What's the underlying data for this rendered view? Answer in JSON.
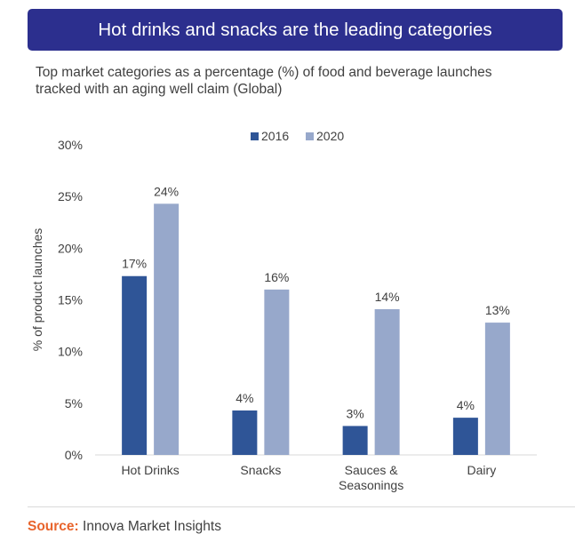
{
  "header": {
    "title": "Hot drinks and snacks are the leading categories",
    "subtitle_line1": "Top market categories as a percentage (%) of food and beverage launches",
    "subtitle_line2": "tracked with an aging well claim (Global)"
  },
  "footer": {
    "source_label": "Source:",
    "source_text": " Innova Market Insights"
  },
  "colors": {
    "banner": "#2c2f8e",
    "series_2016": "#2f5597",
    "series_2020": "#97a8cb",
    "source_label": "#e8642c"
  },
  "chart_data": {
    "type": "bar",
    "categories": [
      "Hot Drinks",
      "Snacks",
      "Sauces & Seasonings",
      "Dairy"
    ],
    "category_label_lines": [
      [
        "Hot Drinks"
      ],
      [
        "Snacks"
      ],
      [
        "Sauces &",
        "Seasonings"
      ],
      [
        "Dairy"
      ]
    ],
    "series": [
      {
        "name": "2016",
        "values": [
          17.3,
          4.3,
          2.8,
          3.6
        ],
        "labels": [
          "17%",
          "4%",
          "3%",
          "4%"
        ],
        "color": "#2f5597"
      },
      {
        "name": "2020",
        "values": [
          24.3,
          16.0,
          14.1,
          12.8
        ],
        "labels": [
          "24%",
          "16%",
          "14%",
          "13%"
        ],
        "color": "#97a8cb"
      }
    ],
    "ylabel": "% of product launches",
    "xlabel": "",
    "ylim": [
      0,
      30
    ],
    "yticks": [
      0,
      5,
      10,
      15,
      20,
      25,
      30
    ],
    "ytick_labels": [
      "0%",
      "5%",
      "10%",
      "15%",
      "20%",
      "25%",
      "30%"
    ],
    "grid": false,
    "legend_position": "top-center"
  }
}
